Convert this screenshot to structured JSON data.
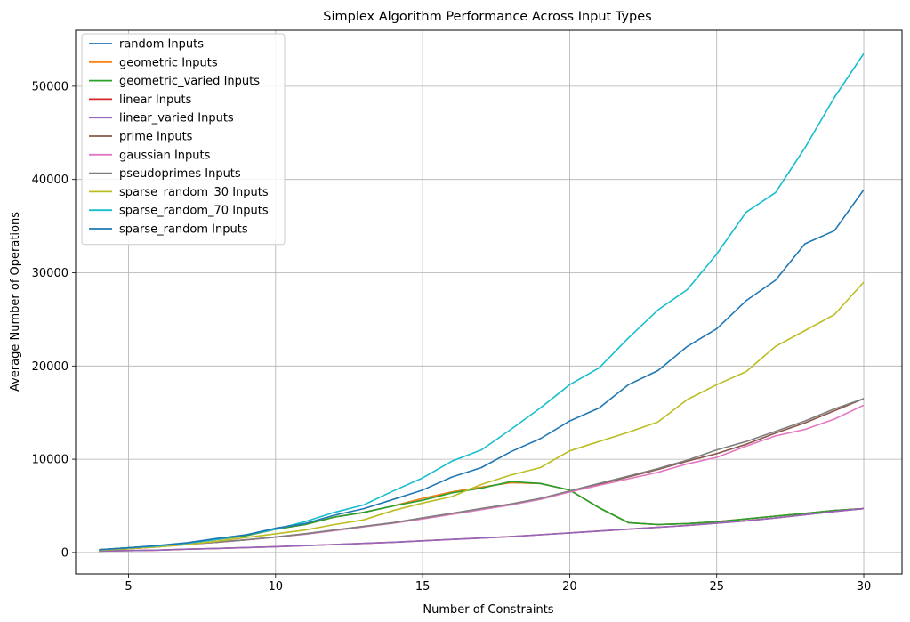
{
  "chart_data": {
    "type": "line",
    "title": "Simplex Algorithm Performance Across Input Types",
    "xlabel": "Number of Constraints",
    "ylabel": "Average Number of Operations",
    "xlim": [
      3.2,
      31.3
    ],
    "ylim": [
      -2300,
      56000
    ],
    "xticks": [
      5,
      10,
      15,
      20,
      25,
      30
    ],
    "yticks": [
      0,
      10000,
      20000,
      30000,
      40000,
      50000
    ],
    "grid": true,
    "legend_position": "top-left",
    "x": [
      4,
      5,
      6,
      7,
      8,
      9,
      10,
      11,
      12,
      13,
      14,
      15,
      16,
      17,
      18,
      19,
      20,
      21,
      22,
      23,
      24,
      25,
      26,
      27,
      28,
      29,
      30
    ],
    "series": [
      {
        "name": "random Inputs",
        "color": "#1f77b4",
        "values": [
          300,
          500,
          700,
          1000,
          1400,
          1800,
          2500,
          3000,
          3800,
          4300,
          5000,
          5800,
          6500,
          7000,
          7500,
          7400,
          6700,
          4800,
          3200,
          3000,
          3100,
          3300,
          3600,
          3900,
          4200,
          4500,
          4700
        ]
      },
      {
        "name": "geometric Inputs",
        "color": "#ff7f0e",
        "values": [
          300,
          500,
          700,
          1000,
          1400,
          1800,
          2500,
          3000,
          3800,
          4300,
          5000,
          5800,
          6500,
          7000,
          7500,
          7400,
          6700,
          4800,
          3200,
          3000,
          3100,
          3300,
          3600,
          3900,
          4200,
          4500,
          4700
        ]
      },
      {
        "name": "geometric_varied Inputs",
        "color": "#2ca02c",
        "values": [
          300,
          500,
          700,
          1000,
          1400,
          1800,
          2500,
          3000,
          3800,
          4300,
          5000,
          5600,
          6400,
          6900,
          7600,
          7400,
          6700,
          4800,
          3200,
          3000,
          3100,
          3300,
          3600,
          3900,
          4200,
          4500,
          4700
        ]
      },
      {
        "name": "linear Inputs",
        "color": "#d62728",
        "values": [
          150,
          200,
          250,
          350,
          430,
          520,
          620,
          730,
          850,
          970,
          1100,
          1250,
          1400,
          1550,
          1700,
          1900,
          2100,
          2300,
          2500,
          2700,
          2900,
          3150,
          3400,
          3700,
          4050,
          4400,
          4700
        ]
      },
      {
        "name": "linear_varied Inputs",
        "color": "#9467bd",
        "values": [
          150,
          200,
          250,
          350,
          430,
          520,
          620,
          730,
          850,
          970,
          1100,
          1250,
          1400,
          1550,
          1700,
          1900,
          2100,
          2300,
          2500,
          2700,
          2900,
          3150,
          3400,
          3700,
          4050,
          4400,
          4700
        ]
      },
      {
        "name": "prime Inputs",
        "color": "#8c564b",
        "values": [
          200,
          400,
          600,
          900,
          1100,
          1350,
          1650,
          2000,
          2400,
          2800,
          3200,
          3700,
          4200,
          4700,
          5200,
          5800,
          6500,
          7300,
          8100,
          8900,
          9800,
          10600,
          11600,
          12800,
          13900,
          15200,
          16500
        ]
      },
      {
        "name": "gaussian Inputs",
        "color": "#e377c2",
        "values": [
          200,
          400,
          600,
          850,
          1100,
          1350,
          1650,
          1950,
          2350,
          2750,
          3150,
          3600,
          4100,
          4600,
          5100,
          5700,
          6500,
          7200,
          7900,
          8600,
          9500,
          10200,
          11400,
          12500,
          13200,
          14300,
          15800
        ]
      },
      {
        "name": "pseudoprimes Inputs",
        "color": "#7f7f7f",
        "values": [
          200,
          400,
          600,
          900,
          1100,
          1350,
          1650,
          2000,
          2400,
          2800,
          3200,
          3700,
          4200,
          4700,
          5200,
          5800,
          6600,
          7400,
          8200,
          9000,
          9900,
          11000,
          11900,
          13000,
          14100,
          15400,
          16500
        ]
      },
      {
        "name": "sparse_random_30 Inputs",
        "color": "#bcbd22",
        "values": [
          250,
          400,
          600,
          850,
          1200,
          1600,
          2000,
          2400,
          3000,
          3500,
          4500,
          5300,
          6000,
          7300,
          8300,
          9100,
          10900,
          11900,
          12900,
          14000,
          16400,
          18000,
          19400,
          22100,
          23800,
          25500,
          29000
        ]
      },
      {
        "name": "sparse_random_70 Inputs",
        "color": "#17becf",
        "values": [
          300,
          500,
          700,
          1000,
          1400,
          1900,
          2500,
          3300,
          4300,
          5100,
          6600,
          8000,
          9800,
          11000,
          13200,
          15500,
          18000,
          19800,
          23000,
          26000,
          28200,
          32000,
          36500,
          38600,
          43400,
          48800,
          53500
        ]
      },
      {
        "name": "sparse_random Inputs",
        "color": "#1f77b4",
        "values": [
          300,
          500,
          750,
          1050,
          1500,
          1900,
          2600,
          3100,
          4000,
          4700,
          5700,
          6700,
          8100,
          9100,
          10800,
          12200,
          14100,
          15500,
          18000,
          19500,
          22100,
          24000,
          27000,
          29200,
          33100,
          34500,
          38900
        ]
      }
    ]
  }
}
